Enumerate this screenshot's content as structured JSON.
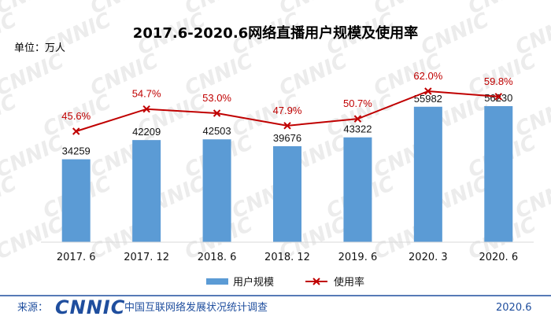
{
  "chart_data": {
    "type": "bar",
    "title": "2017.6-2020.6网络直播用户规模及使用率",
    "unit_label": "单位：万人",
    "categories": [
      "2017. 6",
      "2017. 12",
      "2018. 6",
      "2018. 12",
      "2019. 6",
      "2020. 3",
      "2020. 6"
    ],
    "series": [
      {
        "name": "用户规模",
        "kind": "bar",
        "values": [
          34259,
          42209,
          42503,
          39676,
          43322,
          55982,
          56230
        ],
        "labels": [
          "34259",
          "42209",
          "42503",
          "39676",
          "43322",
          "55982",
          "56230"
        ]
      },
      {
        "name": "使用率",
        "kind": "line",
        "values": [
          45.6,
          54.7,
          53.0,
          47.9,
          50.7,
          62.0,
          59.8
        ],
        "labels": [
          "45.6%",
          "54.7%",
          "53.0%",
          "47.9%",
          "50.7%",
          "62.0%",
          "59.8%"
        ]
      }
    ],
    "legend_position": "bottom",
    "grid": false,
    "colors": {
      "bar": "#5b9bd5",
      "line": "#c00000",
      "rate_label": "#c00000"
    }
  },
  "footer": {
    "source_label": "来源：",
    "logo_text": "CNNIC",
    "org_name": "中国互联网络发展状况统计调查",
    "date": "2020.6"
  },
  "watermark_text": "CNNIC",
  "colors": {
    "logo": "#1f4e9e",
    "footer_rule": "#1f4e9e"
  }
}
